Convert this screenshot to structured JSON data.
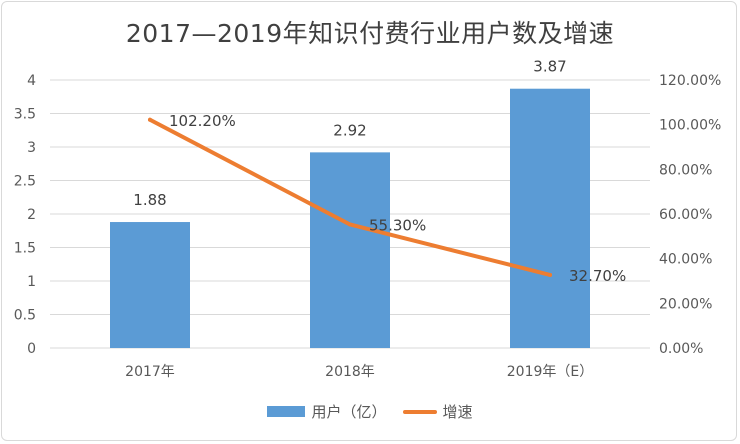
{
  "chart_data": {
    "type": "bar",
    "title": "2017—2019年知识付费行业用户数及增速",
    "categories": [
      "2017年",
      "2018年",
      "2019年（E）"
    ],
    "series": [
      {
        "name": "用户（亿）",
        "kind": "bar",
        "axis": "left",
        "values": [
          1.88,
          2.92,
          3.87
        ],
        "labels": [
          "1.88",
          "2.92",
          "3.87"
        ]
      },
      {
        "name": "增速",
        "kind": "line",
        "axis": "right",
        "values": [
          102.2,
          55.3,
          32.7
        ],
        "labels": [
          "102.20%",
          "55.30%",
          "32.70%"
        ]
      }
    ],
    "y_left": {
      "ylim": [
        0,
        4
      ],
      "ticks": [
        "0",
        "0.5",
        "1",
        "1.5",
        "2",
        "2.5",
        "3",
        "3.5",
        "4"
      ]
    },
    "y_right": {
      "ylim": [
        0,
        120
      ],
      "ticks": [
        "0.00%",
        "20.00%",
        "40.00%",
        "60.00%",
        "80.00%",
        "100.00%",
        "120.00%"
      ]
    },
    "grid": true,
    "legend": "bottom",
    "colors": {
      "bar": "#5b9bd5",
      "line": "#ed7d31",
      "grid": "#d9d9d9"
    }
  }
}
